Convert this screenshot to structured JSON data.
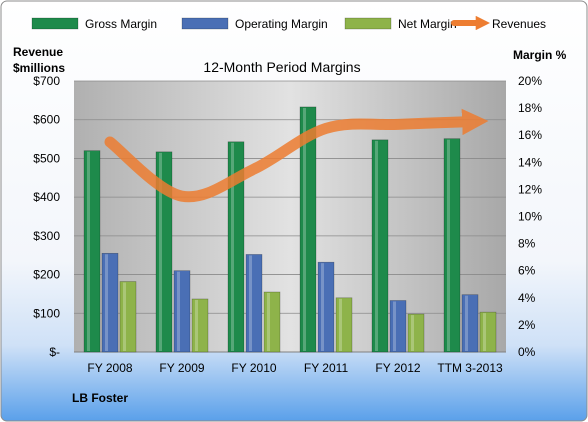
{
  "chart_data": {
    "type": "bar",
    "title": "12-Month Period Margins",
    "company": "LB Foster",
    "y_left_label_line1": "Revenue",
    "y_left_label_line2": "$millions",
    "y_right_label": "Margin %",
    "categories": [
      "FY 2008",
      "FY 2009",
      "FY 2010",
      "FY 2011",
      "FY 2012",
      "TTM 3-2013"
    ],
    "series": [
      {
        "name": "Gross Margin",
        "kind": "bar",
        "axis": "left",
        "color": "#1e8a4b",
        "values": [
          520,
          517,
          543,
          633,
          548,
          551
        ]
      },
      {
        "name": "Operating Margin",
        "kind": "bar",
        "axis": "left",
        "color": "#4a6fb5",
        "values": [
          255,
          210,
          252,
          232,
          133,
          148
        ]
      },
      {
        "name": "Net Margin",
        "kind": "bar",
        "axis": "left",
        "color": "#8eb34a",
        "values": [
          182,
          137,
          155,
          140,
          98,
          103
        ]
      },
      {
        "name": "Revenues",
        "kind": "line",
        "axis": "right",
        "color": "#ed7d31",
        "values": [
          15.5,
          11.5,
          13.5,
          16.5,
          16.8,
          17.0
        ]
      }
    ],
    "y_left": {
      "min": 0,
      "max": 700,
      "step": 100,
      "tick_labels": [
        "$-",
        "$100",
        "$200",
        "$300",
        "$400",
        "$500",
        "$600",
        "$700"
      ]
    },
    "y_right": {
      "min": 0,
      "max": 20,
      "step": 2,
      "tick_labels": [
        "0%",
        "2%",
        "4%",
        "6%",
        "8%",
        "10%",
        "12%",
        "14%",
        "16%",
        "18%",
        "20%"
      ]
    },
    "grid": true,
    "legend_position": "top"
  }
}
